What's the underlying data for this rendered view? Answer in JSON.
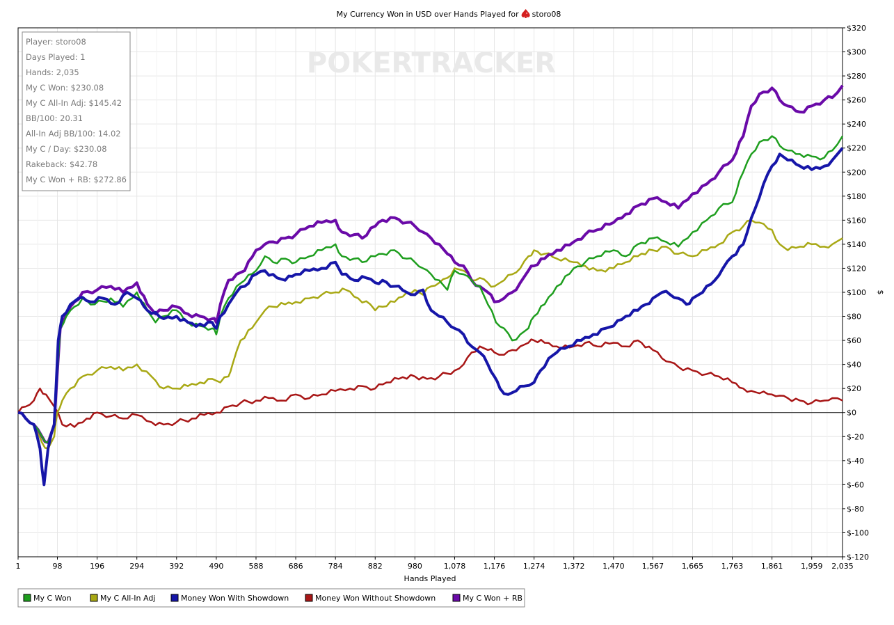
{
  "chart_data": {
    "type": "line",
    "title": "My Currency Won in USD over Hands Played for",
    "player_label": "storo08",
    "title_icon": "red-spade-icon",
    "watermark": "POKERTRACKER",
    "xlabel": "Hands Played",
    "ylabel": "$",
    "xlim": [
      1,
      2035
    ],
    "ylim": [
      -120,
      320
    ],
    "grid": true,
    "x_ticks": [
      1,
      98,
      196,
      294,
      392,
      490,
      588,
      686,
      784,
      882,
      980,
      1078,
      1176,
      1274,
      1372,
      1470,
      1567,
      1665,
      1763,
      1861,
      1959,
      2035
    ],
    "x_tick_labels": [
      "1",
      "98",
      "196",
      "294",
      "392",
      "490",
      "588",
      "686",
      "784",
      "882",
      "980",
      "1,078",
      "1,176",
      "1,274",
      "1,372",
      "1,470",
      "1,567",
      "1,665",
      "1,763",
      "1,861",
      "1,959",
      "2,035"
    ],
    "y_ticks": [
      320,
      300,
      280,
      260,
      240,
      220,
      200,
      180,
      160,
      140,
      120,
      100,
      80,
      60,
      40,
      20,
      0,
      -20,
      -40,
      -60,
      -80,
      -100,
      -120
    ],
    "y_tick_labels": [
      "$320",
      "$300",
      "$280",
      "$260",
      "$240",
      "$220",
      "$200",
      "$180",
      "$160",
      "$140",
      "$120",
      "$100",
      "$80",
      "$60",
      "$40",
      "$20",
      "$0",
      "$-20",
      "$-40",
      "$-60",
      "$-80",
      "$-100",
      "$-120"
    ],
    "legend_position": "bottom",
    "info_box": {
      "position": "top-left",
      "lines": [
        "Player: storo08",
        "Days Played: 1",
        "Hands: 2,035",
        "My C Won: $230.08",
        "My C All-In Adj: $145.42",
        "BB/100: 20.31",
        "All-In Adj BB/100: 14.02",
        "My C / Day: $230.08",
        "Rakeback: $42.78",
        "My C Won + RB: $272.86"
      ]
    },
    "series": [
      {
        "name": "My C Won",
        "color": "#1e9e1e",
        "x": [
          1,
          20,
          40,
          60,
          75,
          90,
          105,
          120,
          140,
          160,
          190,
          230,
          260,
          294,
          320,
          340,
          360,
          392,
          420,
          450,
          480,
          490,
          500,
          520,
          540,
          560,
          588,
          610,
          630,
          660,
          686,
          720,
          750,
          784,
          800,
          830,
          850,
          882,
          900,
          930,
          960,
          980,
          1000,
          1020,
          1040,
          1060,
          1078,
          1100,
          1120,
          1140,
          1160,
          1180,
          1200,
          1220,
          1240,
          1260,
          1274,
          1300,
          1330,
          1372,
          1400,
          1430,
          1470,
          1500,
          1530,
          1567,
          1600,
          1630,
          1665,
          1700,
          1730,
          1763,
          1790,
          1810,
          1830,
          1861,
          1880,
          1900,
          1930,
          1959,
          1990,
          2010,
          2035
        ],
        "y": [
          0,
          -5,
          -10,
          -20,
          -25,
          -10,
          70,
          80,
          88,
          95,
          90,
          95,
          88,
          100,
          85,
          75,
          80,
          85,
          75,
          72,
          70,
          65,
          80,
          95,
          105,
          110,
          118,
          130,
          125,
          128,
          125,
          130,
          135,
          140,
          130,
          128,
          125,
          130,
          132,
          135,
          128,
          125,
          120,
          115,
          110,
          102,
          118,
          115,
          110,
          105,
          90,
          75,
          70,
          60,
          65,
          70,
          80,
          90,
          105,
          120,
          125,
          130,
          135,
          130,
          140,
          145,
          142,
          138,
          150,
          160,
          170,
          175,
          200,
          215,
          225,
          230,
          222,
          218,
          215,
          213,
          212,
          218,
          230
        ]
      },
      {
        "name": "My C All-In Adj",
        "color": "#a8a814",
        "x": [
          1,
          20,
          40,
          60,
          75,
          90,
          98,
          110,
          130,
          160,
          196,
          230,
          260,
          294,
          330,
          360,
          392,
          420,
          450,
          480,
          500,
          520,
          530,
          550,
          588,
          610,
          630,
          660,
          686,
          720,
          750,
          784,
          810,
          840,
          870,
          882,
          900,
          930,
          960,
          980,
          1000,
          1020,
          1040,
          1060,
          1078,
          1100,
          1120,
          1140,
          1160,
          1176,
          1200,
          1220,
          1240,
          1260,
          1274,
          1300,
          1330,
          1372,
          1400,
          1430,
          1470,
          1500,
          1530,
          1567,
          1600,
          1630,
          1665,
          1700,
          1730,
          1763,
          1790,
          1810,
          1830,
          1861,
          1880,
          1900,
          1930,
          1959,
          1990,
          2010,
          2035
        ],
        "y": [
          0,
          -5,
          -10,
          -25,
          -30,
          -20,
          0,
          10,
          20,
          30,
          35,
          38,
          35,
          40,
          30,
          20,
          20,
          22,
          25,
          28,
          25,
          30,
          40,
          60,
          75,
          85,
          88,
          90,
          92,
          95,
          98,
          100,
          102,
          95,
          90,
          85,
          88,
          92,
          100,
          102,
          98,
          105,
          108,
          112,
          120,
          118,
          110,
          112,
          108,
          105,
          110,
          115,
          120,
          130,
          135,
          132,
          128,
          125,
          122,
          118,
          120,
          125,
          130,
          135,
          138,
          132,
          130,
          135,
          140,
          150,
          155,
          160,
          158,
          152,
          140,
          135,
          138,
          140,
          138,
          140,
          145
        ]
      },
      {
        "name": "Money Won With Showdown",
        "color": "#1616a8",
        "x": [
          1,
          20,
          40,
          55,
          65,
          75,
          90,
          100,
          110,
          130,
          150,
          180,
          210,
          240,
          270,
          294,
          320,
          360,
          392,
          420,
          460,
          480,
          490,
          500,
          520,
          540,
          560,
          588,
          610,
          640,
          660,
          686,
          720,
          750,
          784,
          800,
          830,
          860,
          882,
          900,
          930,
          960,
          980,
          1000,
          1020,
          1040,
          1060,
          1078,
          1100,
          1120,
          1140,
          1160,
          1176,
          1190,
          1210,
          1230,
          1250,
          1274,
          1290,
          1310,
          1330,
          1360,
          1390,
          1420,
          1450,
          1470,
          1500,
          1530,
          1550,
          1567,
          1590,
          1610,
          1630,
          1650,
          1665,
          1690,
          1720,
          1740,
          1763,
          1790,
          1800,
          1820,
          1840,
          1861,
          1880,
          1900,
          1930,
          1959,
          1990,
          2010,
          2035
        ],
        "y": [
          0,
          -5,
          -10,
          -30,
          -60,
          -30,
          -10,
          60,
          80,
          90,
          95,
          92,
          95,
          90,
          100,
          95,
          85,
          78,
          80,
          75,
          72,
          75,
          70,
          80,
          90,
          100,
          105,
          115,
          118,
          112,
          110,
          115,
          118,
          120,
          125,
          115,
          110,
          112,
          108,
          110,
          105,
          100,
          98,
          102,
          85,
          80,
          75,
          70,
          65,
          55,
          50,
          40,
          30,
          20,
          15,
          18,
          22,
          25,
          35,
          45,
          50,
          55,
          60,
          65,
          70,
          72,
          80,
          85,
          90,
          95,
          100,
          98,
          95,
          90,
          95,
          100,
          110,
          120,
          130,
          140,
          150,
          170,
          190,
          205,
          215,
          210,
          205,
          202,
          205,
          210,
          220
        ]
      },
      {
        "name": "Money Won Without Showdown",
        "color": "#a81616",
        "x": [
          1,
          20,
          40,
          55,
          70,
          90,
          110,
          140,
          170,
          196,
          230,
          260,
          294,
          330,
          360,
          392,
          430,
          460,
          490,
          520,
          550,
          588,
          620,
          650,
          686,
          720,
          750,
          784,
          820,
          850,
          882,
          910,
          940,
          980,
          1010,
          1040,
          1078,
          1100,
          1120,
          1140,
          1160,
          1176,
          1200,
          1220,
          1240,
          1260,
          1274,
          1300,
          1330,
          1372,
          1400,
          1430,
          1470,
          1500,
          1530,
          1567,
          1590,
          1610,
          1630,
          1665,
          1700,
          1730,
          1763,
          1790,
          1810,
          1830,
          1861,
          1880,
          1900,
          1930,
          1959,
          1990,
          2010,
          2035
        ],
        "y": [
          0,
          5,
          10,
          20,
          15,
          5,
          -10,
          -12,
          -5,
          0,
          -3,
          -5,
          -2,
          -8,
          -10,
          -8,
          -5,
          -2,
          0,
          5,
          8,
          10,
          12,
          10,
          15,
          12,
          15,
          18,
          20,
          22,
          20,
          25,
          28,
          30,
          28,
          30,
          35,
          40,
          50,
          55,
          52,
          50,
          48,
          52,
          55,
          58,
          60,
          58,
          55,
          55,
          58,
          55,
          58,
          55,
          60,
          52,
          45,
          42,
          38,
          35,
          32,
          30,
          25,
          20,
          18,
          16,
          15,
          14,
          12,
          10,
          8,
          10,
          12,
          10
        ]
      },
      {
        "name": "My C Won + RB",
        "color": "#6a0aa8",
        "x": [
          1,
          20,
          40,
          60,
          75,
          90,
          105,
          120,
          140,
          160,
          196,
          230,
          260,
          294,
          320,
          340,
          360,
          392,
          420,
          450,
          480,
          490,
          500,
          520,
          540,
          560,
          588,
          610,
          630,
          660,
          686,
          720,
          750,
          784,
          800,
          830,
          850,
          882,
          900,
          930,
          960,
          980,
          1000,
          1020,
          1040,
          1060,
          1078,
          1100,
          1120,
          1140,
          1160,
          1176,
          1200,
          1220,
          1240,
          1260,
          1274,
          1300,
          1330,
          1372,
          1400,
          1430,
          1470,
          1500,
          1530,
          1567,
          1600,
          1630,
          1665,
          1700,
          1730,
          1763,
          1790,
          1810,
          1830,
          1861,
          1880,
          1900,
          1930,
          1959,
          1990,
          2010,
          2035
        ],
        "y": [
          0,
          -5,
          -10,
          -20,
          -25,
          -10,
          70,
          82,
          92,
          100,
          102,
          105,
          100,
          108,
          90,
          82,
          85,
          88,
          82,
          80,
          78,
          75,
          90,
          110,
          115,
          118,
          135,
          140,
          142,
          145,
          148,
          155,
          158,
          160,
          150,
          148,
          145,
          155,
          160,
          162,
          158,
          155,
          150,
          145,
          140,
          132,
          125,
          122,
          110,
          105,
          100,
          92,
          95,
          100,
          108,
          118,
          122,
          128,
          135,
          142,
          148,
          152,
          158,
          165,
          172,
          178,
          175,
          170,
          182,
          190,
          200,
          210,
          230,
          255,
          265,
          270,
          260,
          255,
          250,
          255,
          260,
          262,
          272
        ]
      }
    ]
  }
}
